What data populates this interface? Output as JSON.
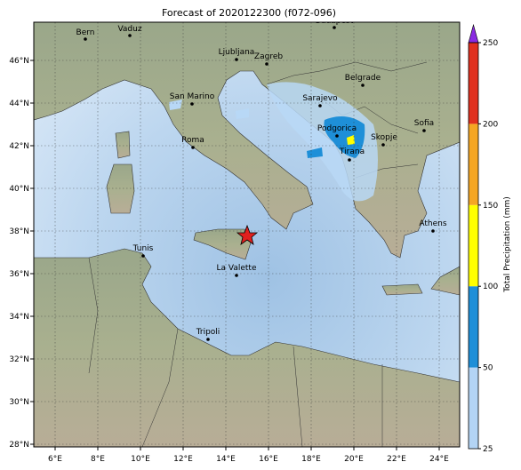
{
  "title": "Forecast of 2020122300 (f072-096)",
  "map": {
    "lon_ticks": [
      "6°E",
      "8°E",
      "10°E",
      "12°E",
      "14°E",
      "16°E",
      "18°E",
      "20°E",
      "22°E",
      "24°E"
    ],
    "lat_ticks": [
      "46°N",
      "44°N",
      "42°N",
      "40°N",
      "38°N",
      "36°N",
      "34°N",
      "32°N",
      "30°N",
      "28°N"
    ],
    "cities": [
      "Budapest",
      "Vaduz",
      "Bern",
      "Ljubljana",
      "Zagreb",
      "Belgrade",
      "San Marino",
      "Sarajevo",
      "Sofia",
      "Podgorica",
      "Skopje",
      "Roma",
      "Tirana",
      "Athens",
      "Tunis",
      "La Valette",
      "Tripoli"
    ]
  },
  "colorbar": {
    "label": "Total Precipitation (mm)",
    "ticks": [
      25,
      50,
      100,
      150,
      200,
      250
    ]
  }
}
